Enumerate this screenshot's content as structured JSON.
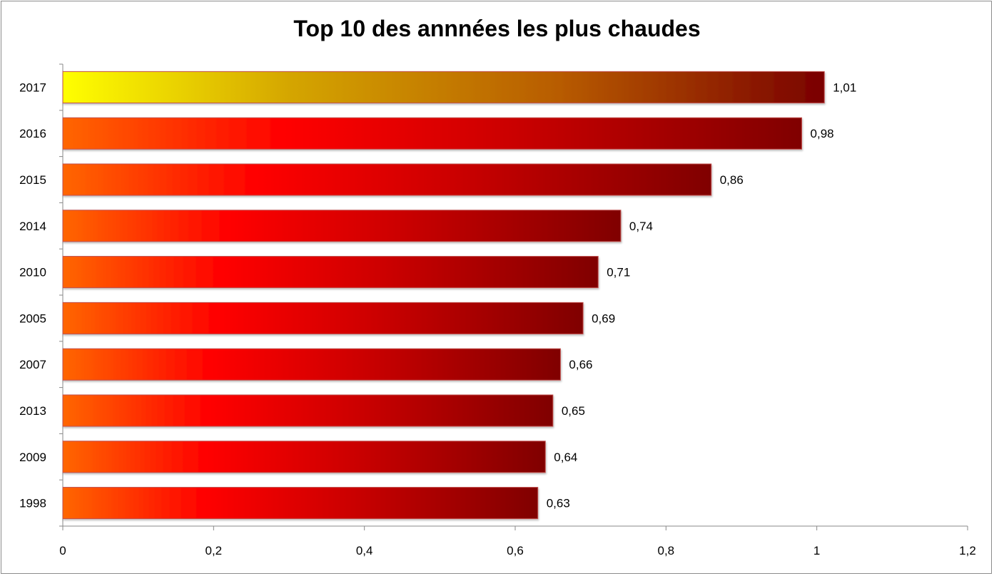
{
  "chart_data": {
    "type": "bar",
    "orientation": "horizontal",
    "title": "Top 10 des annnées les plus chaudes",
    "xlabel": "",
    "ylabel": "",
    "categories": [
      "2017",
      "2016",
      "2015",
      "2014",
      "2010",
      "2005",
      "2007",
      "2013",
      "2009",
      "1998"
    ],
    "values": [
      1.01,
      0.98,
      0.86,
      0.74,
      0.71,
      0.69,
      0.66,
      0.65,
      0.64,
      0.63
    ],
    "data_labels": [
      "1,01",
      "0,98",
      "0,86",
      "0,74",
      "0,71",
      "0,69",
      "0,66",
      "0,65",
      "0,64",
      "0,63"
    ],
    "xlim": [
      0,
      1.2
    ],
    "x_ticks": [
      0,
      0.2,
      0.4,
      0.6,
      0.8,
      1,
      1.2
    ],
    "x_tick_labels": [
      "0",
      "0,2",
      "0,4",
      "0,6",
      "0,8",
      "1",
      "1,2"
    ],
    "grid": false,
    "legend": "none",
    "colors": {
      "highlight_gradient": [
        "#ffff00",
        "#d4a500",
        "#b85c00",
        "#7a0000"
      ],
      "bar_gradient": [
        "#ff6600",
        "#ff0000",
        "#cc0000",
        "#800000"
      ],
      "bar_stroke": "#c0504d",
      "axis": "#888888"
    }
  }
}
